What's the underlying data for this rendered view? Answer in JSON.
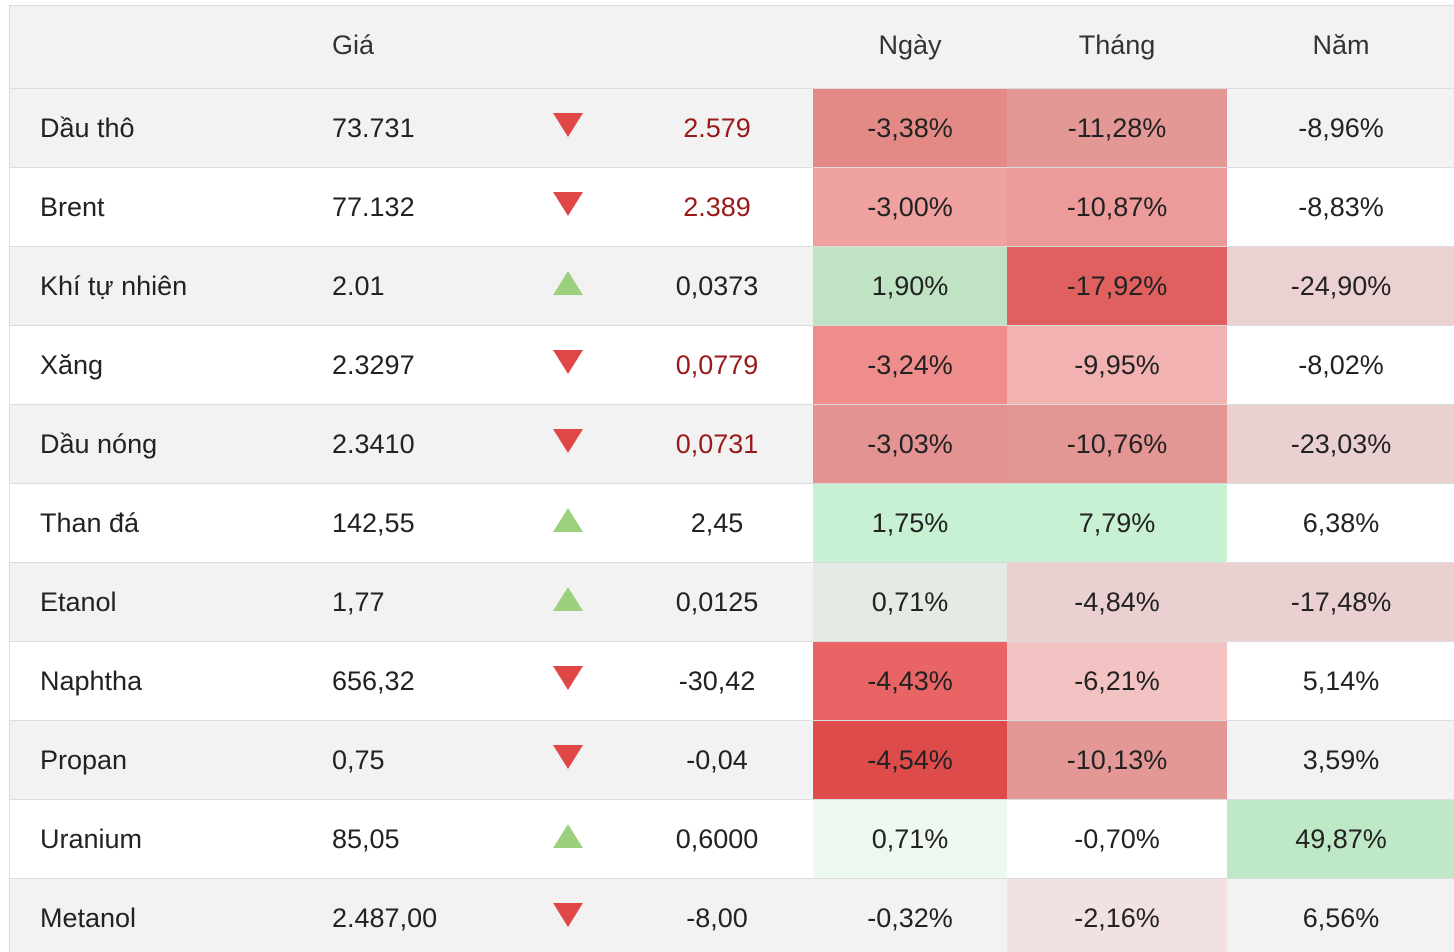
{
  "header": {
    "price": "Giá",
    "day": "Ngày",
    "month": "Tháng",
    "year": "Năm"
  },
  "colors": {
    "up_arrow": "#9bd17c",
    "down_arrow": "#e04646",
    "negative_change_text": "#9a1a1a"
  },
  "rows": [
    {
      "name": "Dầu thô",
      "price": "73.731",
      "direction": "down",
      "change": "2.579",
      "change_style": "red",
      "day": "-3,38%",
      "day_bg": "#e48a86",
      "month": "-11,28%",
      "month_bg": "#e49896",
      "year": "-8,96%",
      "year_bg": ""
    },
    {
      "name": "Brent",
      "price": "77.132",
      "direction": "down",
      "change": "2.389",
      "change_style": "red",
      "day": "-3,00%",
      "day_bg": "#efa1a0",
      "month": "-10,87%",
      "month_bg": "#ed9b9a",
      "year": "-8,83%",
      "year_bg": ""
    },
    {
      "name": "Khí tự nhiên",
      "price": "2.01",
      "direction": "up",
      "change": "0,0373",
      "change_style": "plain",
      "day": "1,90%",
      "day_bg": "#bfe3c3",
      "month": "-17,92%",
      "month_bg": "#e0605f",
      "year": "-24,90%",
      "year_bg": "#ecd1d3"
    },
    {
      "name": "Xăng",
      "price": "2.3297",
      "direction": "down",
      "change": "0,0779",
      "change_style": "red",
      "day": "-3,24%",
      "day_bg": "#ef8c8c",
      "month": "-9,95%",
      "month_bg": "#f2b2b2",
      "year": "-8,02%",
      "year_bg": ""
    },
    {
      "name": "Dầu nóng",
      "price": "2.3410",
      "direction": "down",
      "change": "0,0731",
      "change_style": "red",
      "day": "-3,03%",
      "day_bg": "#e39391",
      "month": "-10,76%",
      "month_bg": "#e49694",
      "year": "-23,03%",
      "year_bg": "#ebd0d2"
    },
    {
      "name": "Than đá",
      "price": "142,55",
      "direction": "up",
      "change": "2,45",
      "change_style": "plain",
      "day": "1,75%",
      "day_bg": "#c8f0d2",
      "month": "7,79%",
      "month_bg": "#c8f0d2",
      "year": "6,38%",
      "year_bg": ""
    },
    {
      "name": "Etanol",
      "price": "1,77",
      "direction": "up",
      "change": "0,0125",
      "change_style": "plain",
      "day": "0,71%",
      "day_bg": "#e4ebe4",
      "month": "-4,84%",
      "month_bg": "#ebd0d2",
      "year": "-17,48%",
      "year_bg": "#ebd0d2"
    },
    {
      "name": "Naphtha",
      "price": "656,32",
      "direction": "down",
      "change": "-30,42",
      "change_style": "plain",
      "day": "-4,43%",
      "day_bg": "#e96464",
      "month": "-6,21%",
      "month_bg": "#f3c3c3",
      "year": "5,14%",
      "year_bg": ""
    },
    {
      "name": "Propan",
      "price": "0,75",
      "direction": "down",
      "change": "-0,04",
      "change_style": "plain",
      "day": "-4,54%",
      "day_bg": "#dd4c4a",
      "month": "-10,13%",
      "month_bg": "#e49896",
      "year": "3,59%",
      "year_bg": ""
    },
    {
      "name": "Uranium",
      "price": "85,05",
      "direction": "up",
      "change": "0,6000",
      "change_style": "plain",
      "day": "0,71%",
      "day_bg": "#edf8ef",
      "month": "-0,70%",
      "month_bg": "",
      "year": "49,87%",
      "year_bg": "#bfe8c6"
    },
    {
      "name": "Metanol",
      "price": "2.487,00",
      "direction": "down",
      "change": "-8,00",
      "change_style": "plain",
      "day": "-0,32%",
      "day_bg": "",
      "month": "-2,16%",
      "month_bg": "#f2e1e1",
      "year": "6,56%",
      "year_bg": ""
    }
  ]
}
